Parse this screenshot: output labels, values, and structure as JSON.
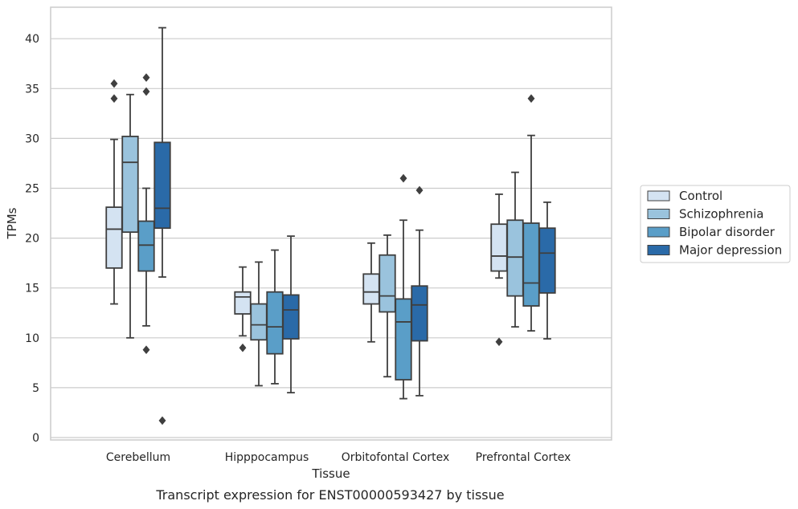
{
  "caption": "Transcript expression for ENST00000593427 by tissue",
  "chart_data": {
    "type": "box",
    "title": "",
    "xlabel": "Tissue",
    "ylabel": "TPMs",
    "ylim": [
      -0.3,
      43
    ],
    "yticks": [
      0,
      5,
      10,
      15,
      20,
      25,
      30,
      35,
      40
    ],
    "grid": "horizontal",
    "legend_position": "right",
    "categories": [
      "Cerebellum",
      "Hipppocampus",
      "Orbitofontal Cortex",
      "Prefrontal Cortex"
    ],
    "series": [
      {
        "name": "Control",
        "color": "#d4e3f2",
        "boxes": [
          {
            "whisker_low": 13.4,
            "q1": 17.0,
            "median": 20.9,
            "q3": 23.1,
            "whisker_high": 29.9,
            "outliers": [
              34.0,
              35.5
            ]
          },
          {
            "whisker_low": 10.2,
            "q1": 12.4,
            "median": 14.1,
            "q3": 14.6,
            "whisker_high": 17.1,
            "outliers": [
              9.0
            ]
          },
          {
            "whisker_low": 9.6,
            "q1": 13.4,
            "median": 14.6,
            "q3": 16.4,
            "whisker_high": 19.5,
            "outliers": []
          },
          {
            "whisker_low": 16.0,
            "q1": 16.7,
            "median": 18.2,
            "q3": 21.4,
            "whisker_high": 24.4,
            "outliers": [
              9.6
            ]
          }
        ]
      },
      {
        "name": "Schizophrenia",
        "color": "#9ac3dd",
        "boxes": [
          {
            "whisker_low": 10.0,
            "q1": 20.6,
            "median": 27.6,
            "q3": 30.2,
            "whisker_high": 34.4,
            "outliers": []
          },
          {
            "whisker_low": 5.2,
            "q1": 9.8,
            "median": 11.3,
            "q3": 13.4,
            "whisker_high": 17.6,
            "outliers": []
          },
          {
            "whisker_low": 6.1,
            "q1": 12.6,
            "median": 14.2,
            "q3": 18.3,
            "whisker_high": 20.3,
            "outliers": []
          },
          {
            "whisker_low": 11.1,
            "q1": 14.2,
            "median": 18.1,
            "q3": 21.8,
            "whisker_high": 26.6,
            "outliers": []
          }
        ]
      },
      {
        "name": "Bipolar disorder",
        "color": "#5a9ec8",
        "boxes": [
          {
            "whisker_low": 11.2,
            "q1": 16.7,
            "median": 19.3,
            "q3": 21.7,
            "whisker_high": 25.0,
            "outliers": [
              8.8,
              34.7,
              36.1
            ]
          },
          {
            "whisker_low": 5.4,
            "q1": 8.4,
            "median": 11.1,
            "q3": 14.6,
            "whisker_high": 18.8,
            "outliers": []
          },
          {
            "whisker_low": 3.9,
            "q1": 5.8,
            "median": 11.6,
            "q3": 13.9,
            "whisker_high": 21.8,
            "outliers": [
              26.0
            ]
          },
          {
            "whisker_low": 10.7,
            "q1": 13.2,
            "median": 15.5,
            "q3": 21.5,
            "whisker_high": 30.3,
            "outliers": [
              34.0
            ]
          }
        ]
      },
      {
        "name": "Major depression",
        "color": "#2a6aa8",
        "boxes": [
          {
            "whisker_low": 16.1,
            "q1": 21.0,
            "median": 23.0,
            "q3": 29.6,
            "whisker_high": 41.1,
            "outliers": [
              1.7
            ]
          },
          {
            "whisker_low": 4.5,
            "q1": 9.9,
            "median": 12.8,
            "q3": 14.3,
            "whisker_high": 20.2,
            "outliers": []
          },
          {
            "whisker_low": 4.2,
            "q1": 9.7,
            "median": 13.3,
            "q3": 15.2,
            "whisker_high": 20.8,
            "outliers": [
              24.8
            ]
          },
          {
            "whisker_low": 9.9,
            "q1": 14.5,
            "median": 18.5,
            "q3": 21.0,
            "whisker_high": 23.6,
            "outliers": []
          }
        ]
      }
    ]
  }
}
